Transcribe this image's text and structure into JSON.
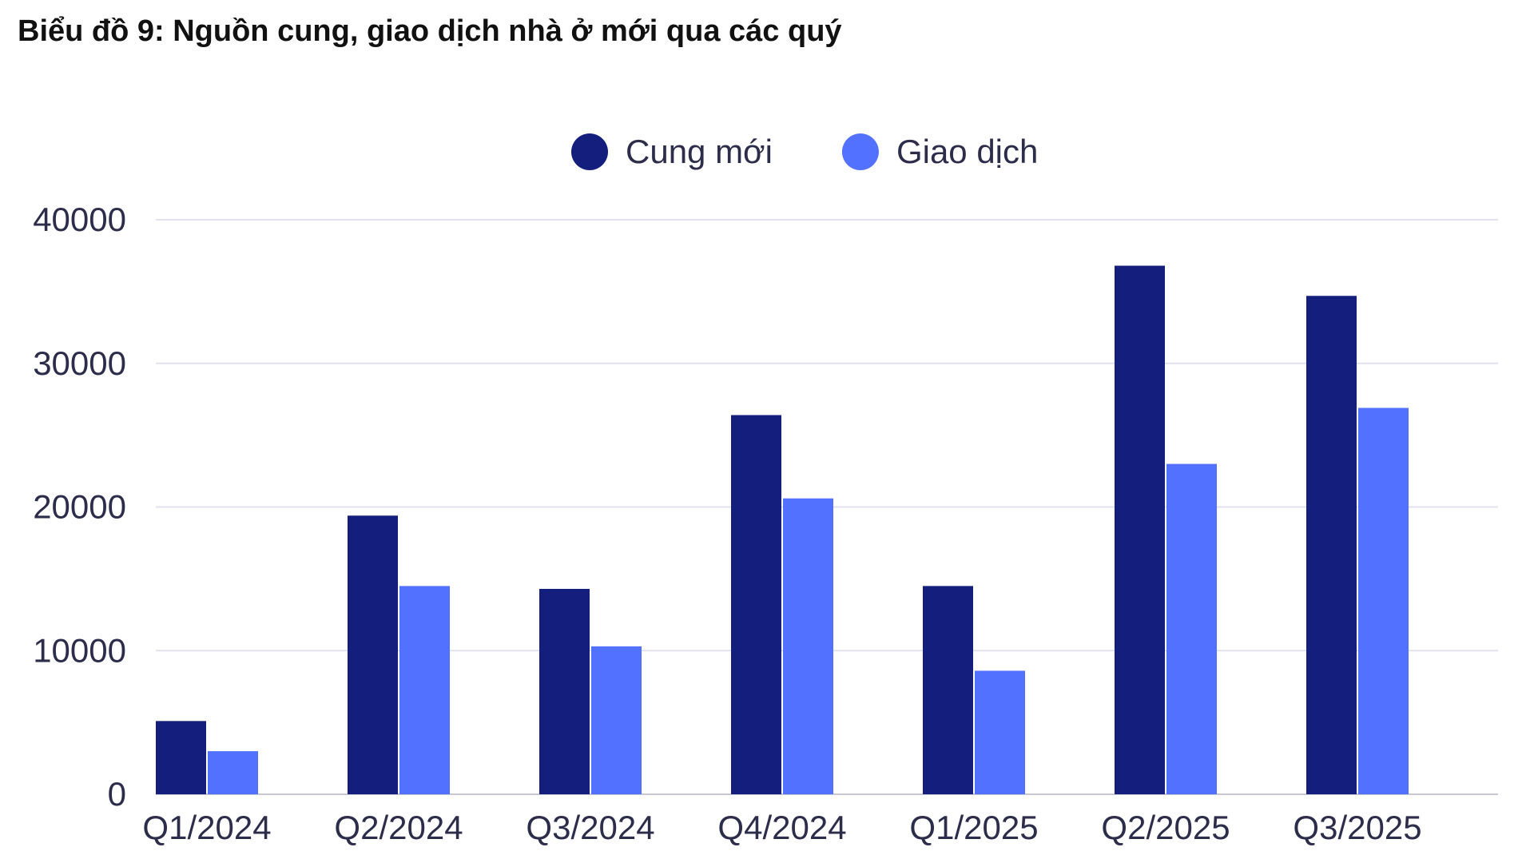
{
  "title": "Biểu đồ 9: Nguồn cung, giao dịch nhà ở mới qua các quý",
  "colors": {
    "Cung mới": "#141f7d",
    "Giao dịch": "#5271ff",
    "grid": "#e2e2ee"
  },
  "chart_data": {
    "type": "bar",
    "title": "Biểu đồ 9: Nguồn cung, giao dịch nhà ở mới qua các quý",
    "categories": [
      "Q1/2024",
      "Q2/2024",
      "Q3/2024",
      "Q4/2024",
      "Q1/2025",
      "Q2/2025",
      "Q3/2025"
    ],
    "series": [
      {
        "name": "Cung mới",
        "values": [
          5100,
          19400,
          14300,
          26400,
          14500,
          36800,
          34700
        ]
      },
      {
        "name": "Giao dịch",
        "values": [
          3000,
          14500,
          10300,
          20600,
          8600,
          23000,
          26900
        ]
      }
    ],
    "yticks": [
      "0",
      "10000",
      "20000",
      "30000",
      "40000"
    ],
    "ylim": [
      0,
      40000
    ],
    "grid": true,
    "legend": "top-center",
    "xlabel": "",
    "ylabel": ""
  }
}
